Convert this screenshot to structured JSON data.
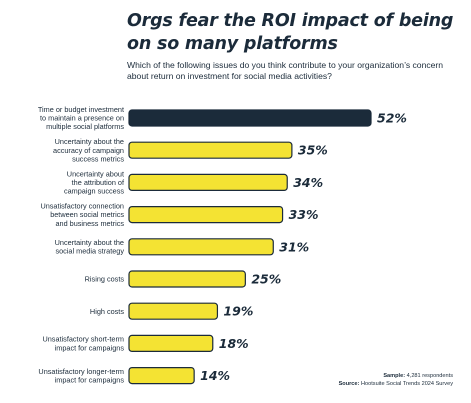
{
  "chart_data": {
    "type": "bar",
    "orientation": "horizontal",
    "title": "Orgs fear the ROI impact of being on so many platforms",
    "subtitle": "Which of the following issues do you think contribute to your organization’s concern about return on investment for social media activities?",
    "categories": [
      "Time or budget investment to maintain a presence on multiple social platforms",
      "Uncertainty about the accuracy of campaign success metrics",
      "Uncertainty about the attribution of campaign success",
      "Unsatisfactory connection between social metrics and business metrics",
      "Uncertainty about the social media strategy",
      "Rising costs",
      "High costs",
      "Unsatisfactory short-term impact for campaigns",
      "Unsatisfactory longer-term impact for campaigns"
    ],
    "category_lines": [
      [
        "Time or budget investment",
        "to maintain a presence on",
        "multiple social platforms"
      ],
      [
        "Uncertainty about the",
        "accuracy of campaign",
        "success metrics"
      ],
      [
        "Uncertainty about",
        "the attribution of",
        "campaign success"
      ],
      [
        "Unsatisfactory connection",
        "between social metrics",
        "and business metrics"
      ],
      [
        "Uncertainty about the",
        "social media strategy"
      ],
      [
        "Rising costs"
      ],
      [
        "High costs"
      ],
      [
        "Unsatisfactory short-term",
        "impact for campaigns"
      ],
      [
        "Unsatisfactory longer-term",
        "impact for campaigns"
      ]
    ],
    "values": [
      52,
      35,
      34,
      33,
      31,
      25,
      19,
      18,
      14
    ],
    "value_labels": [
      "52%",
      "35%",
      "34%",
      "33%",
      "31%",
      "25%",
      "19%",
      "18%",
      "14%"
    ],
    "xlim": [
      0,
      52
    ],
    "highlight_color": "#1b2b3a",
    "bar_color": "#f4e333",
    "bar_border_color": "#1b2b3a",
    "grid": false
  },
  "footer": {
    "sample_label": "Sample:",
    "sample_value": "4,281 respondents",
    "source_label": "Source:",
    "source_value": "Hootsuite Social Trends 2024 Survey"
  }
}
